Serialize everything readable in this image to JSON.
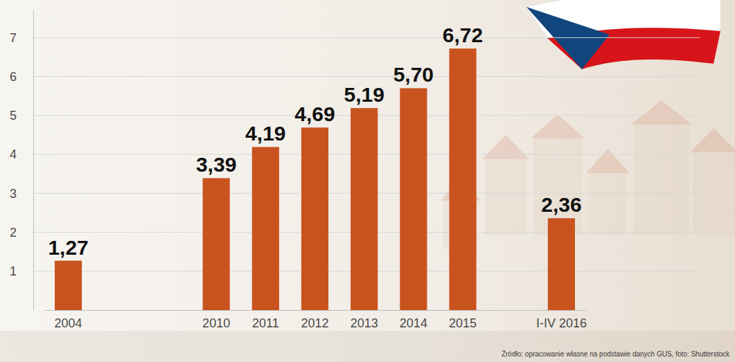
{
  "chart_data": {
    "type": "bar",
    "categories": [
      "2004",
      null,
      null,
      "2010",
      "2011",
      "2012",
      "2013",
      "2014",
      "2015",
      null,
      "I-IV 2016"
    ],
    "values": [
      1.27,
      null,
      null,
      3.39,
      4.19,
      4.69,
      5.19,
      5.7,
      6.72,
      null,
      2.36
    ],
    "value_labels": [
      "1,27",
      null,
      null,
      "3,39",
      "4,19",
      "4,69",
      "5,19",
      "5,70",
      "6,72",
      null,
      "2,36"
    ],
    "color": "#c9531f",
    "ylim": [
      0,
      7.7
    ],
    "yticks": [
      1,
      2,
      3,
      4,
      5,
      6,
      7
    ],
    "grid": true,
    "data_labels": true,
    "annotations": [
      "Źródło: opracowanie własne na podstawie danych GUS, foto: Shutterstock"
    ]
  }
}
